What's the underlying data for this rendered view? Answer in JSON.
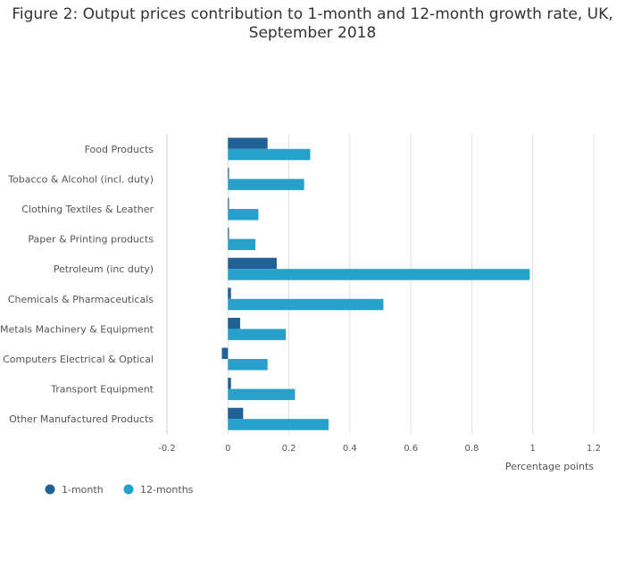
{
  "chart_title": "Figure 2: Output prices contribution to 1-month and 12-month growth rate, UK, September 2018",
  "chart_data": {
    "type": "bar",
    "orientation": "horizontal",
    "title": "Figure 2: Output prices contribution to 1-month and 12-month growth rate, UK, September 2018",
    "xlabel": "Percentage points",
    "ylabel": "",
    "xlim": [
      -0.2,
      1.2
    ],
    "xticks": [
      -0.2,
      0,
      0.2,
      0.4,
      0.6,
      0.8,
      1,
      1.2
    ],
    "xtick_labels": [
      "-0.2",
      "0",
      "0.2",
      "0.4",
      "0.6",
      "0.8",
      "1",
      "1.2"
    ],
    "grid": "vertical",
    "legend_position": "bottom-left",
    "categories": [
      "Food Products",
      "Tobacco & Alcohol (incl. duty)",
      "Clothing Textiles & Leather",
      "Paper & Printing products",
      "Petroleum (inc duty)",
      "Chemicals & Pharmaceuticals",
      "Metals Machinery & Equipment",
      "Computers Electrical & Optical",
      "Transport Equipment",
      "Other Manufactured Products"
    ],
    "series": [
      {
        "name": "1-month",
        "color": "#206095",
        "values": [
          0.13,
          0.002,
          0.002,
          0.002,
          0.16,
          0.01,
          0.04,
          -0.02,
          0.01,
          0.05
        ]
      },
      {
        "name": "12-months",
        "color": "#27a0cc",
        "values": [
          0.27,
          0.25,
          0.1,
          0.09,
          0.99,
          0.51,
          0.19,
          0.13,
          0.22,
          0.33
        ]
      }
    ]
  }
}
